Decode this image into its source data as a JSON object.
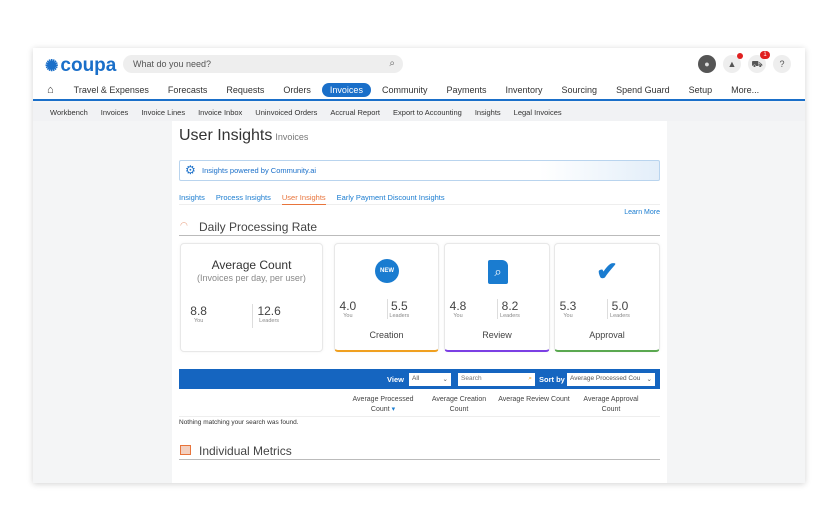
{
  "header": {
    "logo": "coupa",
    "search_placeholder": "What do you need?",
    "cart_count": "1",
    "help": "?"
  },
  "nav": [
    "Travel & Expenses",
    "Forecasts",
    "Requests",
    "Orders",
    "Invoices",
    "Community",
    "Payments",
    "Inventory",
    "Sourcing",
    "Spend Guard",
    "Setup",
    "More..."
  ],
  "subnav": [
    "Workbench",
    "Invoices",
    "Invoice Lines",
    "Invoice Inbox",
    "Uninvoiced Orders",
    "Accrual Report",
    "Export to Accounting",
    "Insights",
    "Legal Invoices"
  ],
  "page": {
    "title": "User Insights",
    "subtitle": "Invoices",
    "banner": "Insights powered by Community.ai",
    "tabs": [
      "Insights",
      "Process Insights",
      "User Insights",
      "Early Payment Discount Insights"
    ],
    "active_tab": "User Insights",
    "learn_more": "Learn More"
  },
  "daily": {
    "title": "Daily Processing Rate",
    "average": {
      "title": "Average Count",
      "subtitle": "(Invoices per day, per user)",
      "you": "8.8",
      "leaders": "12.6"
    },
    "you_label": "You",
    "leaders_label": "Leaders",
    "cards": [
      {
        "name": "Creation",
        "icon": "new-badge-icon",
        "you": "4.0",
        "leaders": "5.5",
        "color": "#f0a020",
        "badge": "NEW"
      },
      {
        "name": "Review",
        "icon": "document-search-icon",
        "you": "4.8",
        "leaders": "8.2",
        "color": "#7b3fe4"
      },
      {
        "name": "Approval",
        "icon": "checkmark-icon",
        "you": "5.3",
        "leaders": "5.0",
        "color": "#5aa850"
      }
    ]
  },
  "metrics": {
    "title": "Individual Metrics",
    "view_label": "View",
    "view_value": "All",
    "search_placeholder": "Search",
    "sort_label": "Sort by",
    "sort_value": "Average Processed Cou",
    "columns": [
      "Average Processed Count",
      "Average Creation Count",
      "Average Review Count",
      "Average Approval Count"
    ],
    "empty": "Nothing matching your search was found."
  },
  "colors": {
    "brand": "#1a6fc9",
    "bar": "#1565c0",
    "active_tab": "#e8743b"
  }
}
